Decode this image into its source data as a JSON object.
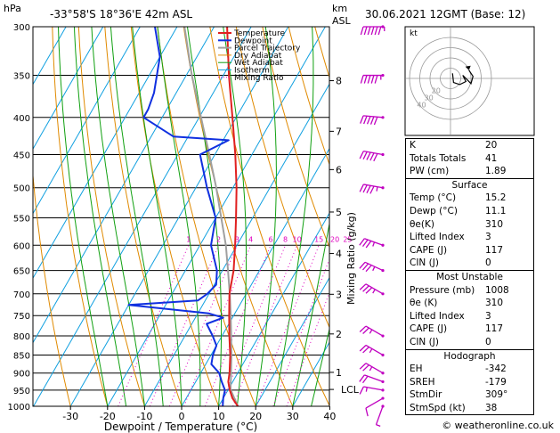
{
  "header": {
    "hpa_label": "hPa",
    "location": "-33°58'S  18°36'E  42m  ASL",
    "km_label": "km",
    "asl_label": "ASL",
    "datetime": "30.06.2021  12GMT  (Base: 12)"
  },
  "footer": {
    "credit": "© weatheronline.co.uk"
  },
  "colors": {
    "temperature": "#e02020",
    "dewpoint": "#1030e0",
    "parcel": "#a0a0a0",
    "dry_adiabat": "#e08a00",
    "wet_adiabat": "#10a010",
    "isotherm": "#10a0e0",
    "mixing_ratio": "#e000c0",
    "wind_barb": "#c000c0"
  },
  "chart_data": {
    "type": "skew-t",
    "xlabel": "Dewpoint / Temperature (°C)",
    "ylabel_right": "Mixing Ratio (g/kg)",
    "pressure_levels": [
      300,
      350,
      400,
      450,
      500,
      550,
      600,
      650,
      700,
      750,
      800,
      850,
      900,
      950,
      1000
    ],
    "temperature_ticks": [
      -30,
      -20,
      -10,
      0,
      10,
      20,
      30,
      40
    ],
    "xlim": [
      -40,
      40
    ],
    "ylim": [
      1000,
      300
    ],
    "km_ticks": [
      {
        "label": "8",
        "p": 356
      },
      {
        "label": "7",
        "p": 418
      },
      {
        "label": "6",
        "p": 472
      },
      {
        "label": "5",
        "p": 540
      },
      {
        "label": "4",
        "p": 616
      },
      {
        "label": "3",
        "p": 701
      },
      {
        "label": "2",
        "p": 795
      },
      {
        "label": "1",
        "p": 898
      },
      {
        "label": "LCL",
        "p": 948
      }
    ],
    "mixing_ratio_labels": [
      "1",
      "2",
      "3",
      "4",
      "6",
      "8",
      "10",
      "15",
      "20",
      "25"
    ],
    "mixing_ratio_values": [
      1,
      2,
      3,
      4,
      6,
      8,
      10,
      15,
      20,
      25
    ],
    "legend": [
      "Temperature",
      "Dewpoint",
      "Parcel Trajectory",
      "Dry Adiabat",
      "Wet Adiabat",
      "Isotherm",
      "Mixing Ratio"
    ],
    "temperature_profile": [
      {
        "p": 1000,
        "t": 15.2
      },
      {
        "p": 975,
        "t": 12.5
      },
      {
        "p": 950,
        "t": 10.5
      },
      {
        "p": 925,
        "t": 8.8
      },
      {
        "p": 900,
        "t": 7.8
      },
      {
        "p": 875,
        "t": 6.5
      },
      {
        "p": 850,
        "t": 5.2
      },
      {
        "p": 800,
        "t": 2.0
      },
      {
        "p": 750,
        "t": -1.2
      },
      {
        "p": 700,
        "t": -4.5
      },
      {
        "p": 650,
        "t": -7.0
      },
      {
        "p": 600,
        "t": -10.5
      },
      {
        "p": 550,
        "t": -14.5
      },
      {
        "p": 500,
        "t": -19.0
      },
      {
        "p": 450,
        "t": -24.5
      },
      {
        "p": 400,
        "t": -31.0
      },
      {
        "p": 350,
        "t": -38.5
      },
      {
        "p": 300,
        "t": -46.5
      }
    ],
    "dewpoint_profile": [
      {
        "p": 1000,
        "t": 11.1
      },
      {
        "p": 975,
        "t": 10.0
      },
      {
        "p": 950,
        "t": 9.2
      },
      {
        "p": 925,
        "t": 7.0
      },
      {
        "p": 900,
        "t": 5.0
      },
      {
        "p": 875,
        "t": 1.5
      },
      {
        "p": 850,
        "t": 0.5
      },
      {
        "p": 825,
        "t": 0.0
      },
      {
        "p": 800,
        "t": -2.5
      },
      {
        "p": 770,
        "t": -6.0
      },
      {
        "p": 755,
        "t": -2.5
      },
      {
        "p": 745,
        "t": -7.0
      },
      {
        "p": 725,
        "t": -30.0
      },
      {
        "p": 715,
        "t": -12.0
      },
      {
        "p": 700,
        "t": -10.5
      },
      {
        "p": 680,
        "t": -9.5
      },
      {
        "p": 650,
        "t": -11.5
      },
      {
        "p": 600,
        "t": -17.0
      },
      {
        "p": 550,
        "t": -20.0
      },
      {
        "p": 500,
        "t": -27.0
      },
      {
        "p": 450,
        "t": -34.0
      },
      {
        "p": 430,
        "t": -28.5
      },
      {
        "p": 425,
        "t": -44.0
      },
      {
        "p": 400,
        "t": -55.0
      },
      {
        "p": 390,
        "t": -55.0
      },
      {
        "p": 370,
        "t": -56.0
      },
      {
        "p": 330,
        "t": -60.0
      },
      {
        "p": 300,
        "t": -66.0
      }
    ],
    "parcel_profile": [
      {
        "p": 1000,
        "t": 15.2
      },
      {
        "p": 948,
        "t": 10.6
      },
      {
        "p": 900,
        "t": 8.2
      },
      {
        "p": 850,
        "t": 5.5
      },
      {
        "p": 800,
        "t": 2.5
      },
      {
        "p": 750,
        "t": -0.8
      },
      {
        "p": 700,
        "t": -4.4
      },
      {
        "p": 650,
        "t": -8.5
      },
      {
        "p": 600,
        "t": -13.0
      },
      {
        "p": 550,
        "t": -18.5
      },
      {
        "p": 500,
        "t": -24.5
      },
      {
        "p": 450,
        "t": -31.5
      },
      {
        "p": 400,
        "t": -39.5
      },
      {
        "p": 350,
        "t": -48.5
      },
      {
        "p": 300,
        "t": -58.0
      }
    ],
    "wind_profile": [
      {
        "p": 1000,
        "dir": 200,
        "spd": 5
      },
      {
        "p": 975,
        "dir": 240,
        "spd": 10
      },
      {
        "p": 950,
        "dir": 280,
        "spd": 15
      },
      {
        "p": 925,
        "dir": 290,
        "spd": 20
      },
      {
        "p": 900,
        "dir": 300,
        "spd": 25
      },
      {
        "p": 850,
        "dir": 300,
        "spd": 25
      },
      {
        "p": 800,
        "dir": 300,
        "spd": 25
      },
      {
        "p": 700,
        "dir": 300,
        "spd": 35
      },
      {
        "p": 650,
        "dir": 295,
        "spd": 35
      },
      {
        "p": 600,
        "dir": 290,
        "spd": 35
      },
      {
        "p": 500,
        "dir": 280,
        "spd": 45
      },
      {
        "p": 450,
        "dir": 280,
        "spd": 50
      },
      {
        "p": 400,
        "dir": 275,
        "spd": 50
      },
      {
        "p": 350,
        "dir": 270,
        "spd": 55
      },
      {
        "p": 300,
        "dir": 270,
        "spd": 65
      }
    ],
    "hodograph": {
      "label": "kt",
      "ring_labels": [
        "20",
        "30",
        "40"
      ],
      "points": [
        {
          "u": 2,
          "v": 5
        },
        {
          "u": 3,
          "v": -4
        },
        {
          "u": 9,
          "v": -6
        },
        {
          "u": 15,
          "v": -3
        },
        {
          "u": 12,
          "v": 3
        },
        {
          "u": 20,
          "v": -5
        },
        {
          "u": 22,
          "v": 2
        },
        {
          "u": 18,
          "v": 8
        }
      ]
    }
  },
  "indices": {
    "basic": [
      {
        "label": "K",
        "value": "20"
      },
      {
        "label": "Totals Totals",
        "value": "41"
      },
      {
        "label": "PW (cm)",
        "value": "1.89"
      }
    ],
    "surface_title": "Surface",
    "surface": [
      {
        "label": "Temp (°C)",
        "value": "15.2"
      },
      {
        "label": "Dewp (°C)",
        "value": "11.1"
      },
      {
        "label": "θe(K)",
        "value": "310"
      },
      {
        "label": "Lifted Index",
        "value": "3"
      },
      {
        "label": "CAPE (J)",
        "value": "117"
      },
      {
        "label": "CIN (J)",
        "value": "0"
      }
    ],
    "mu_title": "Most Unstable",
    "mu": [
      {
        "label": "Pressure (mb)",
        "value": "1008"
      },
      {
        "label": "θe (K)",
        "value": "310"
      },
      {
        "label": "Lifted Index",
        "value": "3"
      },
      {
        "label": "CAPE (J)",
        "value": "117"
      },
      {
        "label": "CIN (J)",
        "value": "0"
      }
    ],
    "hodo_title": "Hodograph",
    "hodo": [
      {
        "label": "EH",
        "value": "-342"
      },
      {
        "label": "SREH",
        "value": "-179"
      },
      {
        "label": "StmDir",
        "value": "309°"
      },
      {
        "label": "StmSpd (kt)",
        "value": "38"
      }
    ]
  }
}
